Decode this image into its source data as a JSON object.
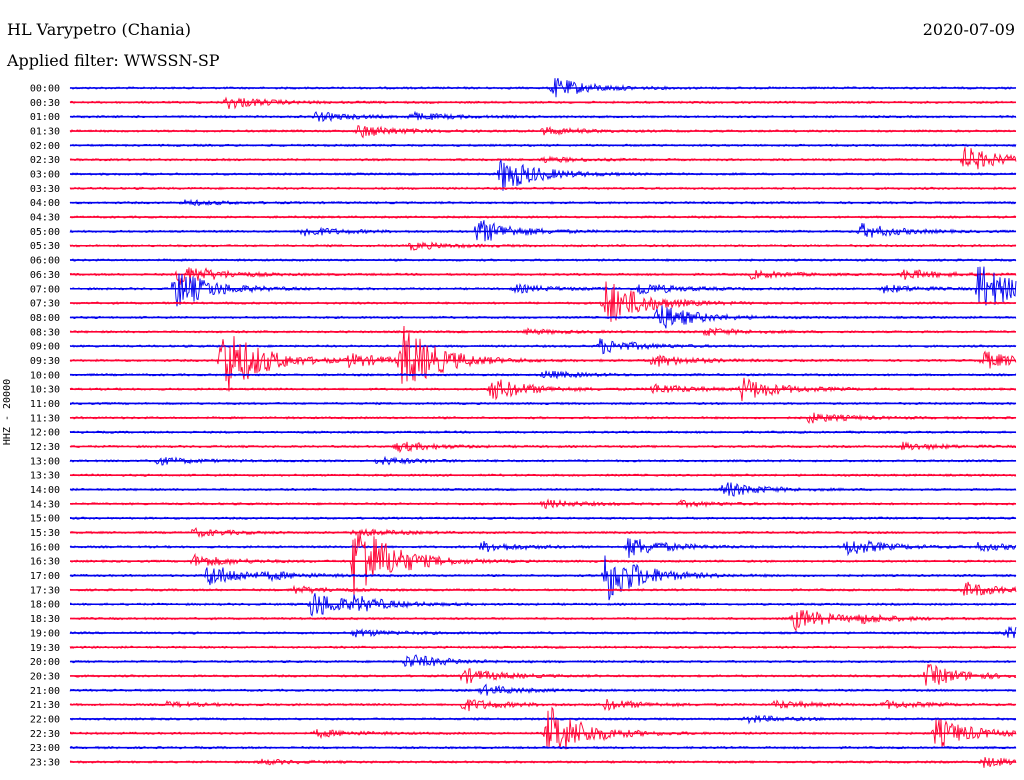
{
  "header": {
    "station": "HL Varypetro (Chania)",
    "filter": "Applied filter: WWSSN-SP",
    "date": "2020-07-09",
    "channel": "HHZ - 20000"
  },
  "colors": {
    "even_trace": "#0000ee",
    "odd_trace": "#ff0033"
  },
  "rows": [
    {
      "time": "00:00",
      "events": [
        [
          0.51,
          0.8
        ]
      ]
    },
    {
      "time": "00:30",
      "events": [
        [
          0.165,
          0.5
        ]
      ]
    },
    {
      "time": "01:00",
      "events": [
        [
          0.26,
          0.35
        ],
        [
          0.36,
          0.3
        ]
      ]
    },
    {
      "time": "01:30",
      "events": [
        [
          0.305,
          0.5
        ],
        [
          0.5,
          0.3
        ]
      ]
    },
    {
      "time": "02:00",
      "events": []
    },
    {
      "time": "02:30",
      "events": [
        [
          0.5,
          0.2
        ],
        [
          0.945,
          1.0
        ]
      ]
    },
    {
      "time": "03:00",
      "events": [
        [
          0.455,
          1.4
        ]
      ]
    },
    {
      "time": "03:30",
      "events": []
    },
    {
      "time": "04:00",
      "events": [
        [
          0.12,
          0.2
        ]
      ]
    },
    {
      "time": "04:30",
      "events": []
    },
    {
      "time": "05:00",
      "events": [
        [
          0.245,
          0.4
        ],
        [
          0.43,
          1.0
        ],
        [
          0.835,
          0.6
        ]
      ]
    },
    {
      "time": "05:30",
      "events": [
        [
          0.36,
          0.3
        ]
      ]
    },
    {
      "time": "06:00",
      "events": []
    },
    {
      "time": "06:30",
      "events": [
        [
          0.115,
          0.9
        ],
        [
          0.72,
          0.3
        ],
        [
          0.88,
          0.4
        ]
      ]
    },
    {
      "time": "07:00",
      "events": [
        [
          0.11,
          1.6
        ],
        [
          0.47,
          0.3
        ],
        [
          0.6,
          0.5
        ],
        [
          0.86,
          0.3
        ],
        [
          0.96,
          2.0
        ]
      ]
    },
    {
      "time": "07:30",
      "events": [
        [
          0.565,
          2.0
        ]
      ]
    },
    {
      "time": "08:00",
      "events": [
        [
          0.62,
          1.1
        ]
      ]
    },
    {
      "time": "08:30",
      "events": [
        [
          0.48,
          0.2
        ],
        [
          0.67,
          0.3
        ]
      ]
    },
    {
      "time": "09:00",
      "events": [
        [
          0.56,
          0.6
        ]
      ]
    },
    {
      "time": "09:30",
      "events": [
        [
          0.16,
          3.0
        ],
        [
          0.295,
          0.5
        ],
        [
          0.35,
          2.7
        ],
        [
          0.615,
          0.5
        ],
        [
          0.965,
          0.7
        ]
      ]
    },
    {
      "time": "10:00",
      "events": [
        [
          0.5,
          0.3
        ]
      ]
    },
    {
      "time": "10:30",
      "events": [
        [
          0.445,
          0.9
        ],
        [
          0.615,
          0.4
        ],
        [
          0.71,
          0.9
        ]
      ]
    },
    {
      "time": "11:00",
      "events": []
    },
    {
      "time": "11:30",
      "events": [
        [
          0.78,
          0.4
        ]
      ]
    },
    {
      "time": "12:00",
      "events": []
    },
    {
      "time": "12:30",
      "events": [
        [
          0.345,
          0.4
        ],
        [
          0.88,
          0.3
        ]
      ]
    },
    {
      "time": "13:00",
      "events": [
        [
          0.09,
          0.3
        ],
        [
          0.325,
          0.3
        ]
      ]
    },
    {
      "time": "13:30",
      "events": []
    },
    {
      "time": "14:00",
      "events": [
        [
          0.69,
          0.6
        ]
      ]
    },
    {
      "time": "14:30",
      "events": [
        [
          0.5,
          0.3
        ],
        [
          0.645,
          0.2
        ]
      ]
    },
    {
      "time": "15:00",
      "events": []
    },
    {
      "time": "15:30",
      "events": [
        [
          0.13,
          0.3
        ],
        [
          0.3,
          0.3
        ]
      ]
    },
    {
      "time": "16:00",
      "events": [
        [
          0.435,
          0.4
        ],
        [
          0.59,
          0.8
        ],
        [
          0.82,
          0.7
        ],
        [
          0.96,
          0.3
        ]
      ]
    },
    {
      "time": "16:30",
      "events": [
        [
          0.3,
          3.5
        ],
        [
          0.13,
          0.5
        ]
      ]
    },
    {
      "time": "17:00",
      "events": [
        [
          0.145,
          0.9
        ],
        [
          0.565,
          2.2
        ],
        [
          0.21,
          0.2
        ]
      ]
    },
    {
      "time": "17:30",
      "events": [
        [
          0.235,
          0.3
        ],
        [
          0.945,
          0.6
        ]
      ]
    },
    {
      "time": "18:00",
      "events": [
        [
          0.255,
          1.1
        ],
        [
          0.3,
          0.4
        ]
      ]
    },
    {
      "time": "18:30",
      "events": [
        [
          0.765,
          0.9
        ],
        [
          0.83,
          0.3
        ]
      ]
    },
    {
      "time": "19:00",
      "events": [
        [
          0.3,
          0.3
        ],
        [
          0.99,
          0.5
        ]
      ]
    },
    {
      "time": "19:30",
      "events": []
    },
    {
      "time": "20:00",
      "events": [
        [
          0.355,
          0.6
        ]
      ]
    },
    {
      "time": "20:30",
      "events": [
        [
          0.415,
          0.6
        ],
        [
          0.905,
          0.9
        ]
      ]
    },
    {
      "time": "21:00",
      "events": [
        [
          0.435,
          0.4
        ]
      ]
    },
    {
      "time": "21:30",
      "events": [
        [
          0.1,
          0.2
        ],
        [
          0.415,
          0.5
        ],
        [
          0.565,
          0.4
        ],
        [
          0.745,
          0.3
        ],
        [
          0.86,
          0.3
        ]
      ]
    },
    {
      "time": "22:00",
      "events": [
        [
          0.715,
          0.3
        ]
      ]
    },
    {
      "time": "22:30",
      "events": [
        [
          0.505,
          2.2
        ],
        [
          0.26,
          0.3
        ],
        [
          0.915,
          1.2
        ]
      ]
    },
    {
      "time": "23:00",
      "events": []
    },
    {
      "time": "23:30",
      "events": [
        [
          0.2,
          0.2
        ],
        [
          0.965,
          0.4
        ]
      ]
    }
  ]
}
